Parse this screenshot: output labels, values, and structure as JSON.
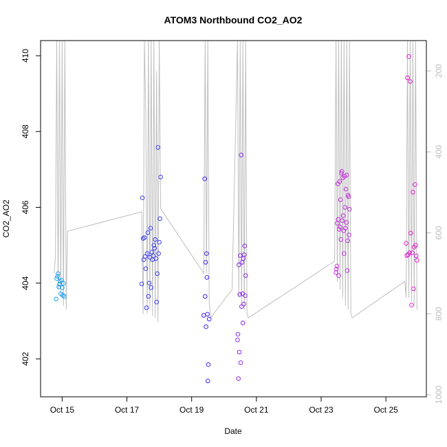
{
  "chart_data": {
    "type": "scatter",
    "title": "ATOM3 Northbound CO2_AO2",
    "xlabel": "Date",
    "ylabel": "CO2_AO2",
    "x_ticks": [
      "Oct 15",
      "Oct 17",
      "Oct 19",
      "Oct 21",
      "Oct 23",
      "Oct 25"
    ],
    "xlim": [
      "2016-10-14T08:00",
      "2016-10-26T06:00"
    ],
    "ylim": [
      401.0,
      410.4
    ],
    "y_ticks": [
      402,
      404,
      406,
      408,
      410
    ],
    "secondary_axis": {
      "position": "right",
      "reversed": true,
      "ticks": [
        200,
        400,
        600,
        800,
        1000
      ],
      "ylim": [
        1005,
        125
      ],
      "color": "#bebebe"
    },
    "grid": false,
    "legend": "none",
    "colors": {
      "line": "#bebebe",
      "oct14": "#19a0f0",
      "oct17": "#3c3cf0",
      "oct19": "#4020f0",
      "oct20": "#8c28e8",
      "oct23": "#c032d8",
      "oct25": "#e020d0"
    },
    "series": [
      {
        "color": "#19a0f0",
        "points": [
          [
            "2016-10-14T19:30",
            403.58
          ],
          [
            "2016-10-14T20:00",
            404.12
          ],
          [
            "2016-10-14T20:30",
            404.18
          ],
          [
            "2016-10-14T21:00",
            404.25
          ],
          [
            "2016-10-14T21:30",
            403.9
          ],
          [
            "2016-10-14T22:00",
            403.97
          ],
          [
            "2016-10-14T22:30",
            404.05
          ],
          [
            "2016-10-14T23:00",
            403.72
          ],
          [
            "2016-10-14T23:30",
            404.08
          ],
          [
            "2016-10-15T00:00",
            403.88
          ],
          [
            "2016-10-15T00:30",
            403.68
          ],
          [
            "2016-10-15T01:00",
            403.99
          ],
          [
            "2016-10-15T01:30",
            403.65
          ]
        ]
      },
      {
        "color": "#3c3cf0",
        "points": [
          [
            "2016-10-17T11:00",
            403.98
          ],
          [
            "2016-10-17T11:30",
            406.25
          ],
          [
            "2016-10-17T12:00",
            405.18
          ],
          [
            "2016-10-17T12:30",
            404.62
          ],
          [
            "2016-10-17T13:00",
            405.2
          ],
          [
            "2016-10-17T13:30",
            404.7
          ],
          [
            "2016-10-17T14:00",
            404.38
          ],
          [
            "2016-10-17T14:30",
            403.35
          ],
          [
            "2016-10-17T15:00",
            404.78
          ],
          [
            "2016-10-17T15:30",
            405.33
          ],
          [
            "2016-10-17T16:00",
            403.65
          ],
          [
            "2016-10-17T16:30",
            404.0
          ],
          [
            "2016-10-17T17:00",
            404.68
          ],
          [
            "2016-10-17T17:30",
            405.45
          ],
          [
            "2016-10-17T18:00",
            403.88
          ],
          [
            "2016-10-17T18:30",
            404.82
          ],
          [
            "2016-10-17T19:00",
            404.62
          ],
          [
            "2016-10-17T19:30",
            404.72
          ],
          [
            "2016-10-17T20:00",
            405.0
          ],
          [
            "2016-10-17T20:30",
            404.92
          ],
          [
            "2016-10-17T21:00",
            405.15
          ],
          [
            "2016-10-17T21:30",
            404.65
          ],
          [
            "2016-10-17T22:00",
            403.5
          ],
          [
            "2016-10-17T22:30",
            404.25
          ],
          [
            "2016-10-17T23:00",
            407.58
          ],
          [
            "2016-10-17T23:30",
            404.78
          ],
          [
            "2016-10-18T00:00",
            405.08
          ],
          [
            "2016-10-18T00:30",
            405.7
          ],
          [
            "2016-10-18T01:00",
            406.8
          ]
        ]
      },
      {
        "color": "#4020f0",
        "points": [
          [
            "2016-10-19T09:00",
            403.15
          ],
          [
            "2016-10-19T09:40",
            406.75
          ],
          [
            "2016-10-19T10:00",
            403.65
          ],
          [
            "2016-10-19T10:20",
            404.55
          ],
          [
            "2016-10-19T10:40",
            402.85
          ],
          [
            "2016-10-19T11:00",
            404.78
          ],
          [
            "2016-10-19T11:20",
            404.15
          ],
          [
            "2016-10-19T11:40",
            403.18
          ],
          [
            "2016-10-19T12:00",
            401.42
          ],
          [
            "2016-10-19T12:20",
            401.85
          ],
          [
            "2016-10-19T13:00",
            403.05
          ]
        ]
      },
      {
        "color": "#8c28e8",
        "points": [
          [
            "2016-10-20T10:00",
            402.5
          ],
          [
            "2016-10-20T10:20",
            402.65
          ],
          [
            "2016-10-20T10:40",
            401.48
          ],
          [
            "2016-10-20T11:00",
            404.48
          ],
          [
            "2016-10-20T11:20",
            402.18
          ],
          [
            "2016-10-20T11:40",
            403.7
          ],
          [
            "2016-10-20T12:00",
            404.73
          ],
          [
            "2016-10-20T12:20",
            401.9
          ],
          [
            "2016-10-20T12:40",
            407.38
          ],
          [
            "2016-10-20T13:00",
            403.38
          ],
          [
            "2016-10-20T13:20",
            404.55
          ],
          [
            "2016-10-20T13:40",
            403.72
          ],
          [
            "2016-10-20T14:00",
            402.95
          ],
          [
            "2016-10-20T14:20",
            404.65
          ],
          [
            "2016-10-20T14:40",
            403.45
          ],
          [
            "2016-10-20T15:00",
            404.75
          ],
          [
            "2016-10-20T15:20",
            404.98
          ],
          [
            "2016-10-20T15:40",
            403.67
          ],
          [
            "2016-10-20T16:00",
            404.2
          ]
        ]
      },
      {
        "color": "#c032d8",
        "points": [
          [
            "2016-10-23T11:00",
            404.28
          ],
          [
            "2016-10-23T11:20",
            404.37
          ],
          [
            "2016-10-23T11:40",
            404.45
          ],
          [
            "2016-10-23T12:00",
            405.58
          ],
          [
            "2016-10-23T12:20",
            406.62
          ],
          [
            "2016-10-23T12:40",
            405.68
          ],
          [
            "2016-10-23T13:00",
            404.2
          ],
          [
            "2016-10-23T13:20",
            405.42
          ],
          [
            "2016-10-23T13:40",
            406.68
          ],
          [
            "2016-10-23T14:00",
            405.48
          ],
          [
            "2016-10-23T14:20",
            406.2
          ],
          [
            "2016-10-23T14:40",
            405.15
          ],
          [
            "2016-10-23T15:00",
            406.9
          ],
          [
            "2016-10-23T15:20",
            406.95
          ],
          [
            "2016-10-23T15:40",
            405.65
          ],
          [
            "2016-10-23T16:00",
            406.78
          ],
          [
            "2016-10-23T16:20",
            405.78
          ],
          [
            "2016-10-23T16:40",
            405.38
          ],
          [
            "2016-10-23T17:00",
            404.78
          ],
          [
            "2016-10-23T17:20",
            406.82
          ],
          [
            "2016-10-23T17:40",
            406.0
          ],
          [
            "2016-10-23T18:00",
            405.45
          ],
          [
            "2016-10-23T18:20",
            406.48
          ],
          [
            "2016-10-23T18:40",
            405.6
          ],
          [
            "2016-10-23T19:00",
            406.85
          ],
          [
            "2016-10-23T19:20",
            404.33
          ],
          [
            "2016-10-23T19:40",
            405.12
          ],
          [
            "2016-10-23T20:00",
            406.32
          ],
          [
            "2016-10-23T20:20",
            406.28
          ],
          [
            "2016-10-23T20:40",
            405.27
          ],
          [
            "2016-10-23T21:00",
            405.95
          ]
        ]
      },
      {
        "color": "#e020d0",
        "points": [
          [
            "2016-10-25T15:00",
            405.05
          ],
          [
            "2016-10-25T15:30",
            404.73
          ],
          [
            "2016-10-25T16:00",
            409.42
          ],
          [
            "2016-10-25T16:30",
            404.75
          ],
          [
            "2016-10-25T17:00",
            409.98
          ],
          [
            "2016-10-25T17:30",
            404.8
          ],
          [
            "2016-10-25T18:00",
            409.32
          ],
          [
            "2016-10-25T18:30",
            405.32
          ],
          [
            "2016-10-25T19:00",
            403.42
          ],
          [
            "2016-10-25T19:30",
            404.8
          ],
          [
            "2016-10-25T20:00",
            406.4
          ],
          [
            "2016-10-25T20:30",
            403.85
          ],
          [
            "2016-10-25T21:00",
            404.95
          ],
          [
            "2016-10-25T21:30",
            406.6
          ],
          [
            "2016-10-25T22:00",
            405.0
          ],
          [
            "2016-10-25T22:30",
            404.72
          ],
          [
            "2016-10-25T23:00",
            404.6
          ]
        ]
      }
    ],
    "line_series": {
      "color": "#bebebe",
      "axis": "right",
      "points": [
        [
          "2016-10-14T18:00",
          700
        ],
        [
          "2016-10-14T19:00",
          660
        ],
        [
          "2016-10-14T20:00",
          125
        ],
        [
          "2016-10-14T21:00",
          740
        ],
        [
          "2016-10-14T22:00",
          125
        ],
        [
          "2016-10-14T23:00",
          760
        ],
        [
          "2016-10-15T00:00",
          125
        ],
        [
          "2016-10-15T01:00",
          780
        ],
        [
          "2016-10-15T02:00",
          125
        ],
        [
          "2016-10-15T03:00",
          790
        ],
        [
          "2016-10-15T04:00",
          596
        ],
        [
          "2016-10-17T11:00",
          548
        ],
        [
          "2016-10-17T12:00",
          800
        ],
        [
          "2016-10-17T13:00",
          125
        ],
        [
          "2016-10-17T14:00",
          310
        ],
        [
          "2016-10-17T15:00",
          800
        ],
        [
          "2016-10-17T16:00",
          125
        ],
        [
          "2016-10-17T17:00",
          790
        ],
        [
          "2016-10-17T18:00",
          125
        ],
        [
          "2016-10-17T19:00",
          805
        ],
        [
          "2016-10-17T20:00",
          125
        ],
        [
          "2016-10-17T21:00",
          810
        ],
        [
          "2016-10-17T22:00",
          200
        ],
        [
          "2016-10-17T23:00",
          820
        ],
        [
          "2016-10-18T00:00",
          125
        ],
        [
          "2016-10-18T01:00",
          540
        ],
        [
          "2016-10-19T09:00",
          700
        ],
        [
          "2016-10-19T10:00",
          125
        ],
        [
          "2016-10-19T11:00",
          700
        ],
        [
          "2016-10-19T12:00",
          125
        ],
        [
          "2016-10-19T13:00",
          770
        ],
        [
          "2016-10-19T14:00",
          810
        ],
        [
          "2016-10-20T06:00",
          740
        ],
        [
          "2016-10-20T10:00",
          125
        ],
        [
          "2016-10-20T11:00",
          760
        ],
        [
          "2016-10-20T12:00",
          125
        ],
        [
          "2016-10-20T13:00",
          780
        ],
        [
          "2016-10-20T14:00",
          125
        ],
        [
          "2016-10-20T15:00",
          790
        ],
        [
          "2016-10-20T16:00",
          125
        ],
        [
          "2016-10-20T17:00",
          800
        ],
        [
          "2016-10-20T18:00",
          810
        ],
        [
          "2016-10-23T10:00",
          670
        ],
        [
          "2016-10-23T11:00",
          125
        ],
        [
          "2016-10-23T12:00",
          720
        ],
        [
          "2016-10-23T13:00",
          125
        ],
        [
          "2016-10-23T14:00",
          740
        ],
        [
          "2016-10-23T15:00",
          125
        ],
        [
          "2016-10-23T16:00",
          760
        ],
        [
          "2016-10-23T17:00",
          125
        ],
        [
          "2016-10-23T18:00",
          780
        ],
        [
          "2016-10-23T19:00",
          125
        ],
        [
          "2016-10-23T20:00",
          790
        ],
        [
          "2016-10-23T21:00",
          125
        ],
        [
          "2016-10-23T22:00",
          800
        ],
        [
          "2016-10-23T23:00",
          810
        ],
        [
          "2016-10-25T14:00",
          720
        ],
        [
          "2016-10-25T15:00",
          760
        ],
        [
          "2016-10-25T16:00",
          125
        ],
        [
          "2016-10-25T17:00",
          760
        ],
        [
          "2016-10-25T18:00",
          125
        ],
        [
          "2016-10-25T19:00",
          770
        ],
        [
          "2016-10-25T20:00",
          125
        ],
        [
          "2016-10-25T21:00",
          780
        ],
        [
          "2016-10-25T22:00",
          125
        ],
        [
          "2016-10-25T23:00",
          790
        ]
      ]
    }
  }
}
